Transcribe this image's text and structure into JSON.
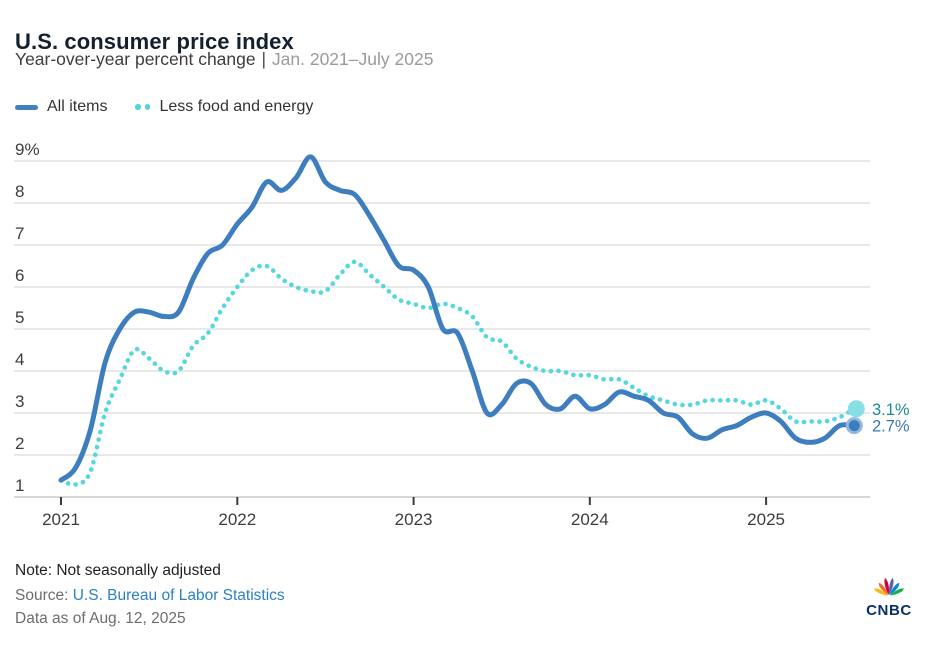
{
  "header": {
    "title": "U.S. consumer price index",
    "subtitle_measure": "Year-over-year percent change",
    "subtitle_separator": "|",
    "subtitle_range": "Jan. 2021–July 2025"
  },
  "legend": {
    "items": [
      {
        "label": "All items",
        "color": "#4280bd",
        "style": "solid"
      },
      {
        "label": "Less food and energy",
        "color": "#4fd5dd",
        "style": "dotted"
      }
    ]
  },
  "chart_data": {
    "type": "line",
    "title": "U.S. consumer price index",
    "subtitle": "Year-over-year percent change | Jan. 2021–July 2025",
    "ylabel": "percent",
    "ylim": [
      1,
      9
    ],
    "grid": "horizontal",
    "legend_position": "top-left",
    "months": [
      "2021-01",
      "2021-02",
      "2021-03",
      "2021-04",
      "2021-05",
      "2021-06",
      "2021-07",
      "2021-08",
      "2021-09",
      "2021-10",
      "2021-11",
      "2021-12",
      "2022-01",
      "2022-02",
      "2022-03",
      "2022-04",
      "2022-05",
      "2022-06",
      "2022-07",
      "2022-08",
      "2022-09",
      "2022-10",
      "2022-11",
      "2022-12",
      "2023-01",
      "2023-02",
      "2023-03",
      "2023-04",
      "2023-05",
      "2023-06",
      "2023-07",
      "2023-08",
      "2023-09",
      "2023-10",
      "2023-11",
      "2023-12",
      "2024-01",
      "2024-02",
      "2024-03",
      "2024-04",
      "2024-05",
      "2024-06",
      "2024-07",
      "2024-08",
      "2024-09",
      "2024-10",
      "2024-11",
      "2024-12",
      "2025-01",
      "2025-02",
      "2025-03",
      "2025-04",
      "2025-05",
      "2025-06",
      "2025-07"
    ],
    "series": [
      {
        "name": "Less food and energy",
        "color": "#55d7de",
        "style": "dotted",
        "values": [
          1.4,
          1.3,
          1.6,
          3.0,
          3.8,
          4.5,
          4.3,
          4.0,
          4.0,
          4.6,
          4.9,
          5.5,
          6.0,
          6.4,
          6.5,
          6.2,
          6.0,
          5.9,
          5.9,
          6.3,
          6.6,
          6.3,
          6.0,
          5.7,
          5.6,
          5.5,
          5.6,
          5.5,
          5.3,
          4.8,
          4.7,
          4.3,
          4.1,
          4.0,
          4.0,
          3.9,
          3.9,
          3.8,
          3.8,
          3.6,
          3.4,
          3.3,
          3.2,
          3.2,
          3.3,
          3.3,
          3.3,
          3.2,
          3.3,
          3.1,
          2.8,
          2.8,
          2.8,
          2.9,
          3.1
        ]
      },
      {
        "name": "All items",
        "color": "#3e7ebf",
        "style": "solid",
        "values": [
          1.4,
          1.7,
          2.6,
          4.2,
          5.0,
          5.4,
          5.4,
          5.3,
          5.4,
          6.2,
          6.8,
          7.0,
          7.5,
          7.9,
          8.5,
          8.3,
          8.6,
          9.1,
          8.5,
          8.3,
          8.2,
          7.7,
          7.1,
          6.5,
          6.4,
          6.0,
          5.0,
          4.9,
          4.0,
          3.0,
          3.2,
          3.7,
          3.7,
          3.2,
          3.1,
          3.4,
          3.1,
          3.2,
          3.5,
          3.4,
          3.3,
          3.0,
          2.9,
          2.5,
          2.4,
          2.6,
          2.7,
          2.9,
          3.0,
          2.8,
          2.4,
          2.3,
          2.4,
          2.7,
          2.7
        ]
      }
    ],
    "yticks": [
      {
        "v": 1,
        "label": "1"
      },
      {
        "v": 2,
        "label": "2"
      },
      {
        "v": 3,
        "label": "3"
      },
      {
        "v": 4,
        "label": "4"
      },
      {
        "v": 5,
        "label": "5"
      },
      {
        "v": 6,
        "label": "6"
      },
      {
        "v": 7,
        "label": "7"
      },
      {
        "v": 8,
        "label": "8"
      },
      {
        "v": 9,
        "label": "9%"
      }
    ],
    "xticks": [
      {
        "m": 0,
        "label": "2021"
      },
      {
        "m": 12,
        "label": "2022"
      },
      {
        "m": 24,
        "label": "2023"
      },
      {
        "m": 36,
        "label": "2024"
      },
      {
        "m": 48,
        "label": "2025"
      }
    ],
    "end_labels": [
      {
        "series": "Less food and energy",
        "text": "3.1%",
        "color": "#1d8a91"
      },
      {
        "series": "All items",
        "text": "2.7%",
        "color": "#3c78ad"
      }
    ]
  },
  "footer": {
    "note": "Note: Not seasonally adjusted",
    "source_label": "Source:",
    "source_link_text": "U.S. Bureau of Labor Statistics",
    "data_as_of": "Data as of Aug. 12, 2025"
  },
  "logo": {
    "text": "CNBC",
    "feather_colors": [
      "#FCB711",
      "#F37021",
      "#CC004C",
      "#6460AA",
      "#0089D0",
      "#0DB14B"
    ]
  }
}
